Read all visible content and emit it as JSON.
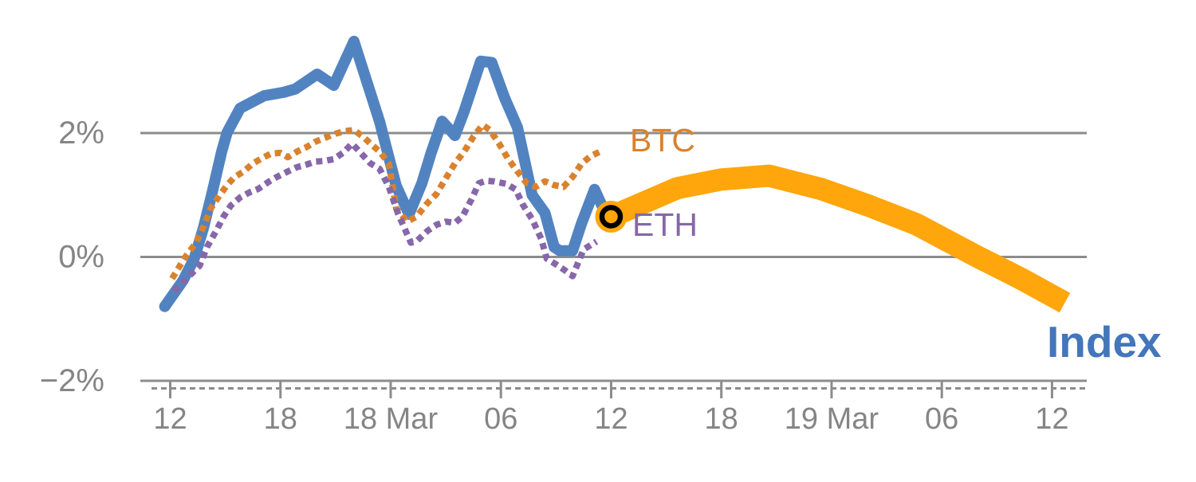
{
  "chart_data": {
    "type": "line",
    "title": "",
    "description": "Hourly percent returns of a crypto Index vs BTC and ETH with an amber forecast band",
    "y_axis": {
      "tick_labels": [
        "2%",
        "0%",
        "−2%"
      ],
      "tick_values": [
        2,
        0,
        -2
      ],
      "unit": "%",
      "grid": true
    },
    "x_axis": {
      "tick_labels": [
        "12",
        "18",
        "18 Mar",
        "06",
        "12",
        "18",
        "19 Mar",
        "06",
        "12"
      ],
      "tick_hours": [
        0,
        6,
        12,
        18,
        24,
        30,
        36,
        42,
        48
      ],
      "minor_ticks": "dashed row along axis"
    },
    "series": [
      {
        "name": "index",
        "label": "Index",
        "color": "#5283c1",
        "label_color": "#4376ba",
        "style": "solid",
        "points": [
          [
            -0.3,
            -0.8
          ],
          [
            0.7,
            -0.38
          ],
          [
            1.3,
            -0.03
          ],
          [
            1.8,
            0.46
          ],
          [
            2.3,
            1.06
          ],
          [
            2.8,
            1.7
          ],
          [
            3.1,
            2.01
          ],
          [
            3.8,
            2.4
          ],
          [
            5.1,
            2.6
          ],
          [
            6.2,
            2.66
          ],
          [
            6.8,
            2.71
          ],
          [
            8.0,
            2.95
          ],
          [
            8.9,
            2.77
          ],
          [
            10.0,
            3.48
          ],
          [
            11.4,
            2.18
          ],
          [
            12.3,
            1.15
          ],
          [
            13.0,
            0.69
          ],
          [
            13.7,
            1.19
          ],
          [
            14.2,
            1.68
          ],
          [
            14.8,
            2.19
          ],
          [
            15.5,
            1.96
          ],
          [
            16.0,
            2.35
          ],
          [
            16.9,
            3.16
          ],
          [
            17.5,
            3.14
          ],
          [
            18.2,
            2.57
          ],
          [
            18.9,
            2.09
          ],
          [
            19.7,
            1.0
          ],
          [
            20.4,
            0.71
          ],
          [
            20.9,
            0.16
          ],
          [
            21.2,
            0.1
          ],
          [
            21.9,
            0.1
          ],
          [
            22.4,
            0.55
          ],
          [
            23.1,
            1.09
          ],
          [
            23.5,
            0.83
          ],
          [
            23.8,
            0.73
          ]
        ]
      },
      {
        "name": "btc",
        "label": "BTC",
        "color": "#d9822e",
        "label_color": "#d9822e",
        "style": "dotted",
        "points": [
          [
            0.1,
            -0.35
          ],
          [
            0.8,
            -0.01
          ],
          [
            1.4,
            0.23
          ],
          [
            1.8,
            0.48
          ],
          [
            2.2,
            0.78
          ],
          [
            2.7,
            1.0
          ],
          [
            3.1,
            1.16
          ],
          [
            3.5,
            1.29
          ],
          [
            4.0,
            1.38
          ],
          [
            4.5,
            1.51
          ],
          [
            5.1,
            1.61
          ],
          [
            5.5,
            1.67
          ],
          [
            6.0,
            1.68
          ],
          [
            6.4,
            1.61
          ],
          [
            6.9,
            1.7
          ],
          [
            7.4,
            1.77
          ],
          [
            7.9,
            1.86
          ],
          [
            8.4,
            1.92
          ],
          [
            9.0,
            1.99
          ],
          [
            9.5,
            2.03
          ],
          [
            10.0,
            2.05
          ],
          [
            10.5,
            1.94
          ],
          [
            10.9,
            1.83
          ],
          [
            11.4,
            1.7
          ],
          [
            11.9,
            1.51
          ],
          [
            12.3,
            0.78
          ],
          [
            12.9,
            0.57
          ],
          [
            13.4,
            0.65
          ],
          [
            14.0,
            0.87
          ],
          [
            14.5,
            1.02
          ],
          [
            15.0,
            1.27
          ],
          [
            15.5,
            1.51
          ],
          [
            16.0,
            1.7
          ],
          [
            16.5,
            1.94
          ],
          [
            17.0,
            2.13
          ],
          [
            17.4,
            2.05
          ],
          [
            17.9,
            1.83
          ],
          [
            18.4,
            1.58
          ],
          [
            18.9,
            1.38
          ],
          [
            19.4,
            1.19
          ],
          [
            19.9,
            1.13
          ],
          [
            20.4,
            1.22
          ],
          [
            20.9,
            1.16
          ],
          [
            21.4,
            1.13
          ],
          [
            21.9,
            1.29
          ],
          [
            22.4,
            1.51
          ],
          [
            22.9,
            1.63
          ],
          [
            23.4,
            1.7
          ]
        ]
      },
      {
        "name": "eth",
        "label": "ETH",
        "color": "#8767a9",
        "label_color": "#8767a9",
        "style": "dotted",
        "points": [
          [
            0.2,
            -0.55
          ],
          [
            1.6,
            -0.14
          ],
          [
            2.0,
            0.16
          ],
          [
            2.5,
            0.42
          ],
          [
            2.9,
            0.65
          ],
          [
            3.3,
            0.83
          ],
          [
            3.8,
            0.96
          ],
          [
            4.3,
            1.04
          ],
          [
            4.8,
            1.1
          ],
          [
            5.4,
            1.22
          ],
          [
            5.8,
            1.29
          ],
          [
            6.4,
            1.38
          ],
          [
            6.9,
            1.45
          ],
          [
            7.4,
            1.49
          ],
          [
            7.9,
            1.54
          ],
          [
            8.4,
            1.55
          ],
          [
            8.9,
            1.58
          ],
          [
            9.4,
            1.68
          ],
          [
            9.9,
            1.83
          ],
          [
            10.4,
            1.67
          ],
          [
            10.9,
            1.51
          ],
          [
            11.4,
            1.42
          ],
          [
            11.9,
            1.13
          ],
          [
            12.4,
            0.7
          ],
          [
            13.1,
            0.23
          ],
          [
            13.4,
            0.25
          ],
          [
            14.0,
            0.42
          ],
          [
            14.5,
            0.52
          ],
          [
            15.0,
            0.57
          ],
          [
            15.5,
            0.55
          ],
          [
            15.9,
            0.65
          ],
          [
            16.4,
            0.93
          ],
          [
            16.8,
            1.19
          ],
          [
            17.2,
            1.23
          ],
          [
            17.6,
            1.22
          ],
          [
            18.3,
            1.18
          ],
          [
            18.8,
            1.09
          ],
          [
            19.2,
            0.84
          ],
          [
            19.7,
            0.61
          ],
          [
            20.2,
            0.29
          ],
          [
            20.5,
            -0.03
          ],
          [
            21.0,
            -0.12
          ],
          [
            21.5,
            -0.22
          ],
          [
            21.9,
            -0.31
          ],
          [
            22.5,
            0.12
          ],
          [
            23.2,
            0.25
          ]
        ]
      },
      {
        "name": "index-forecast",
        "label": "",
        "color": "#ffa60c",
        "label_color": "#ffa60c",
        "style": "band",
        "points": [
          [
            24.0,
            0.65
          ],
          [
            27.6,
            1.11
          ],
          [
            30.0,
            1.25
          ],
          [
            32.6,
            1.31
          ],
          [
            35.4,
            1.1
          ],
          [
            38.0,
            0.83
          ],
          [
            40.6,
            0.53
          ],
          [
            43.9,
            0.01
          ],
          [
            46.3,
            -0.35
          ],
          [
            48.7,
            -0.74
          ]
        ]
      }
    ],
    "marker": {
      "name": "now-marker",
      "hours": 24.0,
      "value": 0.65,
      "shape": "ring",
      "ring_color": "#000000",
      "fill_color": "#ffa60c"
    },
    "layout_hints": {
      "grid_color": "#8c8c8c",
      "tick_text_color": "#858585",
      "legend_position": "inline-annotations"
    }
  }
}
